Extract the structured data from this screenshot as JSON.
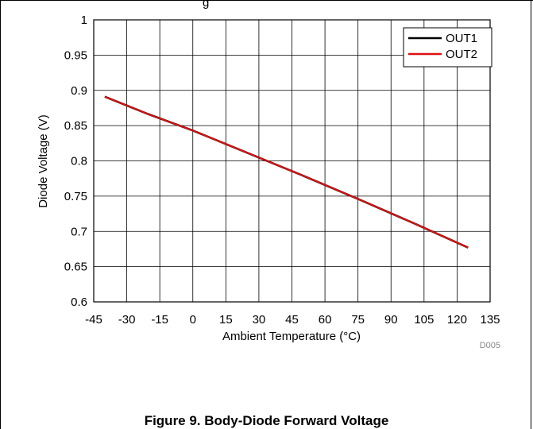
{
  "chart_data": {
    "type": "line",
    "title": "",
    "xlabel": "Ambient Temperature (°C)",
    "ylabel": "Diode Voltage (V)",
    "xlim": [
      -45,
      135
    ],
    "ylim": [
      0.6,
      1
    ],
    "xticks": [
      -45,
      -30,
      -15,
      0,
      15,
      30,
      45,
      60,
      75,
      90,
      105,
      120,
      135
    ],
    "yticks": [
      0.6,
      0.65,
      0.7,
      0.75,
      0.8,
      0.85,
      0.9,
      0.95,
      1
    ],
    "xtick_labels": [
      "-45",
      "-30",
      "-15",
      "0",
      "15",
      "30",
      "45",
      "60",
      "75",
      "90",
      "105",
      "120",
      "135"
    ],
    "ytick_labels": [
      "0.6",
      "0.65",
      "0.7",
      "0.75",
      "0.8",
      "0.85",
      "0.9",
      "0.95",
      "1"
    ],
    "grid": true,
    "legend_position": "top-right",
    "series": [
      {
        "name": "OUT1",
        "color": "#000000",
        "x": [
          -40,
          -20,
          0,
          25,
          50,
          75,
          100,
          125
        ],
        "y": [
          0.891,
          0.866,
          0.843,
          0.811,
          0.779,
          0.746,
          0.712,
          0.677
        ]
      },
      {
        "name": "OUT2",
        "color": "#dd1111",
        "x": [
          -40,
          -20,
          0,
          25,
          50,
          75,
          100,
          125
        ],
        "y": [
          0.891,
          0.866,
          0.843,
          0.811,
          0.779,
          0.746,
          0.712,
          0.677
        ]
      }
    ],
    "code": "D005"
  },
  "header_text": "g",
  "caption": "Figure 9. Body-Diode Forward Voltage"
}
